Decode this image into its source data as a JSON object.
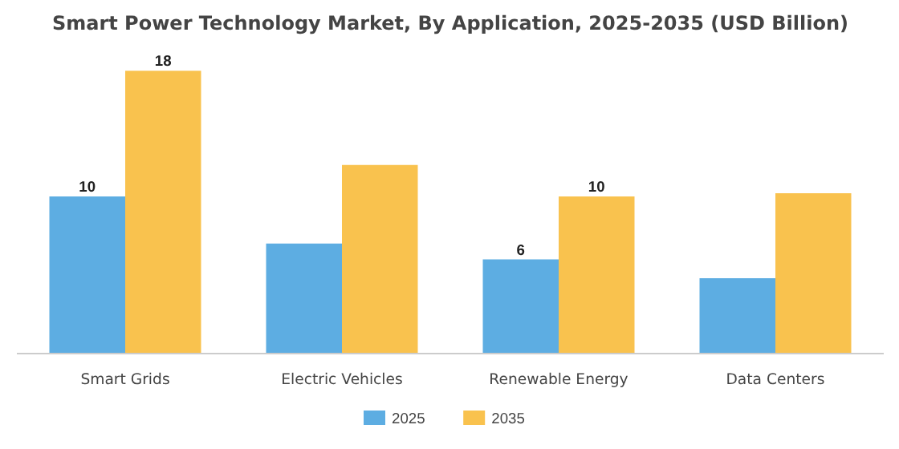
{
  "chart_data": {
    "type": "bar",
    "title": "Smart Power Technology Market, By Application, 2025-2035 (USD Billion)",
    "categories": [
      "Smart Grids",
      "Electric Vehicles",
      "Renewable Energy",
      "Data Centers"
    ],
    "series": [
      {
        "name": "2025",
        "color": "#5dade2",
        "values": [
          10,
          7,
          6,
          4.8
        ],
        "value_labels": [
          "10",
          null,
          "6",
          null
        ]
      },
      {
        "name": "2035",
        "color": "#f9c24e",
        "values": [
          18,
          12,
          10,
          10.2
        ],
        "value_labels": [
          "18",
          null,
          "10",
          null
        ]
      }
    ],
    "legend": "bottom"
  }
}
